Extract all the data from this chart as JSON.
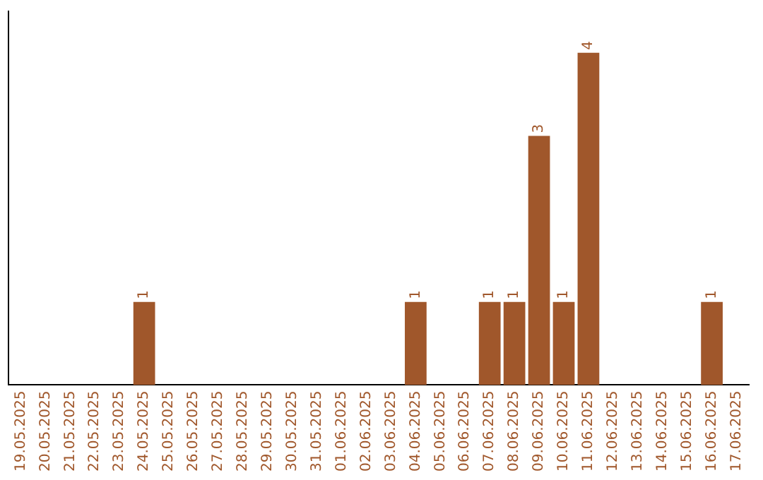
{
  "chart_data": {
    "type": "bar",
    "categories": [
      "19.05.2025",
      "20.05.2025",
      "21.05.2025",
      "22.05.2025",
      "23.05.2025",
      "24.05.2025",
      "25.05.2025",
      "26.05.2025",
      "27.05.2025",
      "28.05.2025",
      "29.05.2025",
      "30.05.2025",
      "31.05.2025",
      "01.06.2025",
      "02.06.2025",
      "03.06.2025",
      "04.06.2025",
      "05.06.2025",
      "06.06.2025",
      "07.06.2025",
      "08.06.2025",
      "09.06.2025",
      "10.06.2025",
      "11.06.2025",
      "12.06.2025",
      "13.06.2025",
      "14.06.2025",
      "15.06.2025",
      "16.06.2025",
      "17.06.2025"
    ],
    "values": [
      0,
      0,
      0,
      0,
      0,
      1,
      0,
      0,
      0,
      0,
      0,
      0,
      0,
      0,
      0,
      0,
      1,
      0,
      0,
      1,
      1,
      3,
      1,
      4,
      0,
      0,
      0,
      0,
      1,
      0
    ],
    "value_labels": [
      null,
      null,
      null,
      null,
      null,
      "1",
      null,
      null,
      null,
      null,
      null,
      null,
      null,
      null,
      null,
      null,
      "1",
      null,
      null,
      "1",
      "1",
      "3",
      "1",
      "4",
      null,
      null,
      null,
      null,
      "1",
      null
    ],
    "color": "#a0572b",
    "tick_labels": "x",
    "grid": false,
    "legend": false
  }
}
